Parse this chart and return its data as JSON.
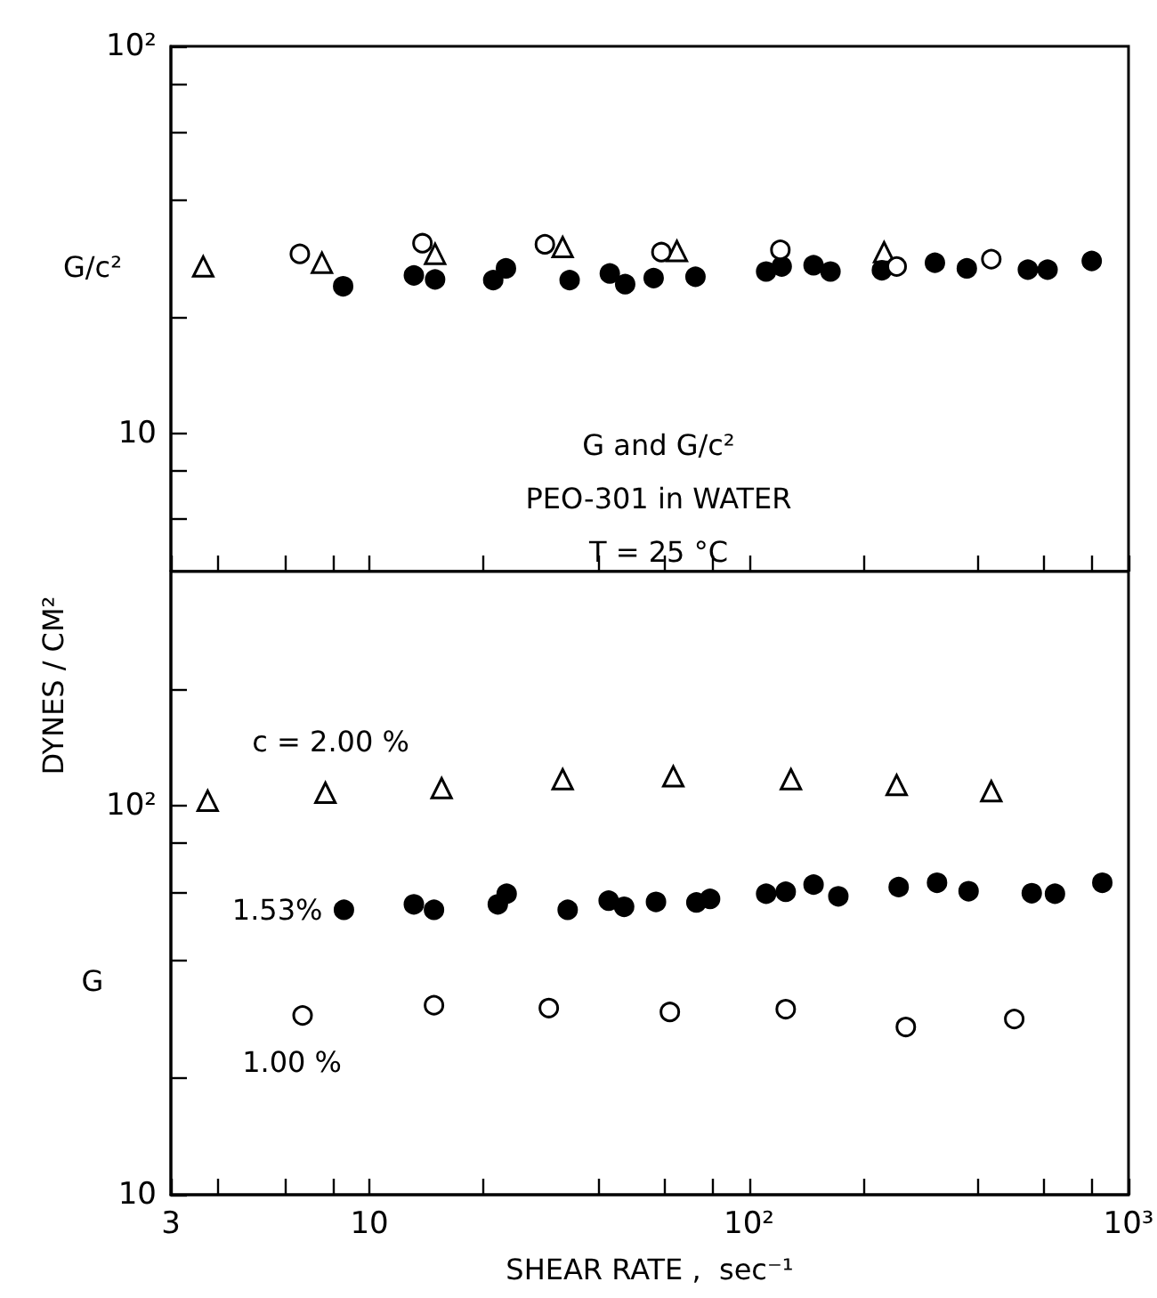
{
  "chart_data": [
    {
      "type": "scatter",
      "tick_labels": "y",
      "log": "xy",
      "legend": false,
      "grid": false,
      "xlim": [
        3,
        1000
      ],
      "xticks": [
        {
          "value": 3,
          "label": null
        },
        {
          "value": 4,
          "label": null
        },
        {
          "value": 6,
          "label": null
        },
        {
          "value": 8,
          "label": null
        },
        {
          "value": 10,
          "label": null
        },
        {
          "value": 20,
          "label": null
        },
        {
          "value": 40,
          "label": null
        },
        {
          "value": 60,
          "label": null
        },
        {
          "value": 80,
          "label": null
        },
        {
          "value": 100,
          "label": null
        },
        {
          "value": 200,
          "label": null
        },
        {
          "value": 400,
          "label": null
        },
        {
          "value": 600,
          "label": null
        },
        {
          "value": 800,
          "label": null
        },
        {
          "value": 1000,
          "label": null
        }
      ],
      "ylim": [
        4.4,
        100
      ],
      "yticks": [
        {
          "value": 6,
          "label": null
        },
        {
          "value": 8,
          "label": null
        },
        10,
        {
          "value": 20,
          "label": null
        },
        {
          "value": 40,
          "label": null
        },
        {
          "value": 60,
          "label": null
        },
        {
          "value": 80,
          "label": null
        },
        {
          "value": 100,
          "label": "10²"
        }
      ],
      "annotations": [
        "G/c²",
        "G and G/c²",
        "PEO-301 in WATER",
        "T = 25 °C"
      ],
      "series": [
        {
          "color": "#ffffff",
          "marker": "triangle",
          "x": [
            3.65,
            7.5,
            14.9,
            32.3,
            64.6,
            227
          ],
          "values": [
            27,
            27.6,
            29.1,
            30.3,
            29.6,
            29.4
          ]
        },
        {
          "color": "#000000",
          "marker": "circle",
          "x": [
            8.53,
            13.1,
            14.9,
            21.2,
            22.9,
            33.7,
            43,
            47.2,
            56.1,
            72.3,
            111,
            122,
            148,
            164,
            224,
            309,
            375,
            543,
            612,
            800
          ],
          "values": [
            24,
            25.6,
            25,
            24.9,
            26.7,
            24.9,
            25.9,
            24.3,
            25.2,
            25.4,
            26.2,
            27,
            27.2,
            26.2,
            26.4,
            27.6,
            26.7,
            26.5,
            26.5,
            27.9
          ]
        },
        {
          "color": "#ffffff",
          "marker": "circle",
          "x": [
            6.56,
            13.8,
            29,
            58.8,
            121,
            245,
            435
          ],
          "values": [
            29.1,
            31,
            30.8,
            29.4,
            29.8,
            27,
            28.2
          ]
        }
      ]
    },
    {
      "type": "scatter",
      "log": "xy",
      "legend": false,
      "grid": false,
      "xlabel": "SHEAR RATE ,  sec⁻¹",
      "ylabel": "DYNES / CM²",
      "xlim": [
        3,
        1000
      ],
      "xticks": [
        3,
        {
          "value": 4,
          "label": null
        },
        {
          "value": 6,
          "label": null
        },
        {
          "value": 8,
          "label": null
        },
        10,
        {
          "value": 20,
          "label": null
        },
        {
          "value": 40,
          "label": null
        },
        {
          "value": 60,
          "label": null
        },
        {
          "value": 80,
          "label": null
        },
        {
          "value": 100,
          "label": "10²"
        },
        {
          "value": 200,
          "label": null
        },
        {
          "value": 400,
          "label": null
        },
        {
          "value": 600,
          "label": null
        },
        {
          "value": 800,
          "label": null
        },
        {
          "value": 1000,
          "label": "10³"
        }
      ],
      "ylim": [
        10,
        400
      ],
      "yticks": [
        10,
        {
          "value": 20,
          "label": null
        },
        {
          "value": 40,
          "label": null
        },
        {
          "value": 60,
          "label": null
        },
        {
          "value": 80,
          "label": null
        },
        {
          "value": 100,
          "label": "10²"
        },
        {
          "value": 200,
          "label": null
        }
      ],
      "annotations": [
        "G"
      ],
      "series": [
        {
          "name": "c = 2.00 %",
          "color": "#ffffff",
          "marker": "triangle",
          "x": [
            3.75,
            7.66,
            15.5,
            32.3,
            63.2,
            129,
            245,
            435
          ],
          "values": [
            103,
            108,
            111,
            117,
            119,
            117,
            113,
            109
          ]
        },
        {
          "name": "1.53%",
          "color": "#000000",
          "marker": "circle",
          "x": [
            8.57,
            13.1,
            14.8,
            21.8,
            23,
            33.3,
            42.7,
            46.9,
            56.9,
            72.7,
            79,
            111,
            125,
            148,
            172,
            248,
            313,
            379,
            556,
            640,
            853
          ],
          "values": [
            54,
            55.8,
            54,
            55.8,
            59.4,
            54,
            57,
            55,
            56.6,
            56.4,
            57.6,
            59.4,
            60.1,
            62.7,
            58.5,
            61.8,
            63.4,
            60.3,
            59.6,
            59.4,
            63.4
          ]
        },
        {
          "name": "1.00 %",
          "color": "#ffffff",
          "marker": "circle",
          "x": [
            6.67,
            14.8,
            29.7,
            61.9,
            125,
            259,
            500
          ],
          "values": [
            28.9,
            30.7,
            30.2,
            29.5,
            30,
            27,
            28.3
          ]
        }
      ]
    }
  ]
}
